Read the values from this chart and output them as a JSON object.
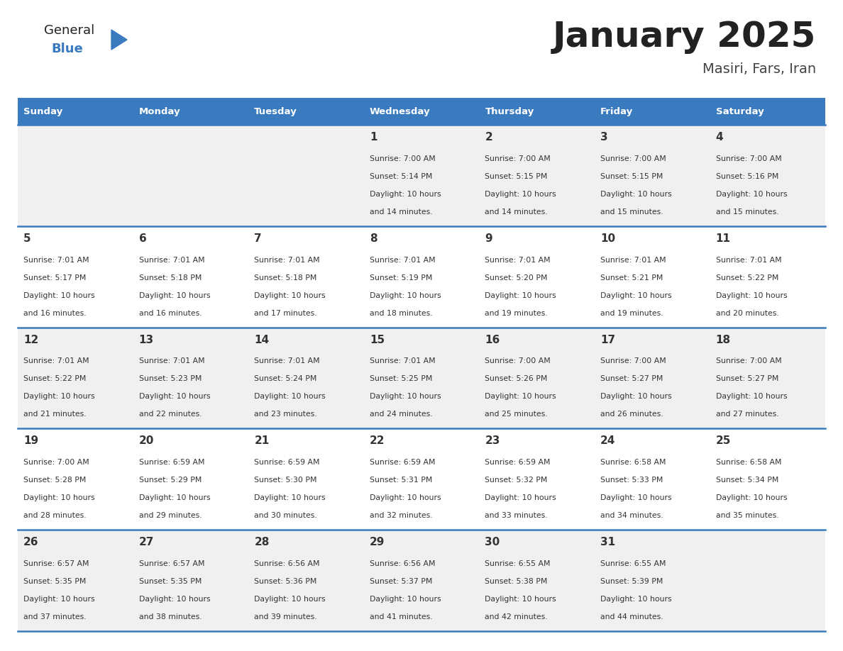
{
  "title": "January 2025",
  "subtitle": "Masiri, Fars, Iran",
  "header_color": "#3a7abf",
  "header_text_color": "#ffffff",
  "day_names": [
    "Sunday",
    "Monday",
    "Tuesday",
    "Wednesday",
    "Thursday",
    "Friday",
    "Saturday"
  ],
  "background_color": "#ffffff",
  "cell_bg_even": "#f0f0f0",
  "cell_bg_odd": "#ffffff",
  "row_line_color": "#3a7abf",
  "title_color": "#222222",
  "subtitle_color": "#444444",
  "day_number_color": "#333333",
  "info_color": "#333333",
  "logo_general_color": "#222222",
  "logo_blue_color": "#3a7abf",
  "logo_triangle_color": "#3a7abf",
  "calendar": [
    [
      {
        "day": "",
        "sunrise": "",
        "sunset": "",
        "daylight_hours": "",
        "daylight_mins": ""
      },
      {
        "day": "",
        "sunrise": "",
        "sunset": "",
        "daylight_hours": "",
        "daylight_mins": ""
      },
      {
        "day": "",
        "sunrise": "",
        "sunset": "",
        "daylight_hours": "",
        "daylight_mins": ""
      },
      {
        "day": "1",
        "sunrise": "7:00 AM",
        "sunset": "5:14 PM",
        "daylight_hours": "10 hours",
        "daylight_mins": "and 14 minutes."
      },
      {
        "day": "2",
        "sunrise": "7:00 AM",
        "sunset": "5:15 PM",
        "daylight_hours": "10 hours",
        "daylight_mins": "and 14 minutes."
      },
      {
        "day": "3",
        "sunrise": "7:00 AM",
        "sunset": "5:15 PM",
        "daylight_hours": "10 hours",
        "daylight_mins": "and 15 minutes."
      },
      {
        "day": "4",
        "sunrise": "7:00 AM",
        "sunset": "5:16 PM",
        "daylight_hours": "10 hours",
        "daylight_mins": "and 15 minutes."
      }
    ],
    [
      {
        "day": "5",
        "sunrise": "7:01 AM",
        "sunset": "5:17 PM",
        "daylight_hours": "10 hours",
        "daylight_mins": "and 16 minutes."
      },
      {
        "day": "6",
        "sunrise": "7:01 AM",
        "sunset": "5:18 PM",
        "daylight_hours": "10 hours",
        "daylight_mins": "and 16 minutes."
      },
      {
        "day": "7",
        "sunrise": "7:01 AM",
        "sunset": "5:18 PM",
        "daylight_hours": "10 hours",
        "daylight_mins": "and 17 minutes."
      },
      {
        "day": "8",
        "sunrise": "7:01 AM",
        "sunset": "5:19 PM",
        "daylight_hours": "10 hours",
        "daylight_mins": "and 18 minutes."
      },
      {
        "day": "9",
        "sunrise": "7:01 AM",
        "sunset": "5:20 PM",
        "daylight_hours": "10 hours",
        "daylight_mins": "and 19 minutes."
      },
      {
        "day": "10",
        "sunrise": "7:01 AM",
        "sunset": "5:21 PM",
        "daylight_hours": "10 hours",
        "daylight_mins": "and 19 minutes."
      },
      {
        "day": "11",
        "sunrise": "7:01 AM",
        "sunset": "5:22 PM",
        "daylight_hours": "10 hours",
        "daylight_mins": "and 20 minutes."
      }
    ],
    [
      {
        "day": "12",
        "sunrise": "7:01 AM",
        "sunset": "5:22 PM",
        "daylight_hours": "10 hours",
        "daylight_mins": "and 21 minutes."
      },
      {
        "day": "13",
        "sunrise": "7:01 AM",
        "sunset": "5:23 PM",
        "daylight_hours": "10 hours",
        "daylight_mins": "and 22 minutes."
      },
      {
        "day": "14",
        "sunrise": "7:01 AM",
        "sunset": "5:24 PM",
        "daylight_hours": "10 hours",
        "daylight_mins": "and 23 minutes."
      },
      {
        "day": "15",
        "sunrise": "7:01 AM",
        "sunset": "5:25 PM",
        "daylight_hours": "10 hours",
        "daylight_mins": "and 24 minutes."
      },
      {
        "day": "16",
        "sunrise": "7:00 AM",
        "sunset": "5:26 PM",
        "daylight_hours": "10 hours",
        "daylight_mins": "and 25 minutes."
      },
      {
        "day": "17",
        "sunrise": "7:00 AM",
        "sunset": "5:27 PM",
        "daylight_hours": "10 hours",
        "daylight_mins": "and 26 minutes."
      },
      {
        "day": "18",
        "sunrise": "7:00 AM",
        "sunset": "5:27 PM",
        "daylight_hours": "10 hours",
        "daylight_mins": "and 27 minutes."
      }
    ],
    [
      {
        "day": "19",
        "sunrise": "7:00 AM",
        "sunset": "5:28 PM",
        "daylight_hours": "10 hours",
        "daylight_mins": "and 28 minutes."
      },
      {
        "day": "20",
        "sunrise": "6:59 AM",
        "sunset": "5:29 PM",
        "daylight_hours": "10 hours",
        "daylight_mins": "and 29 minutes."
      },
      {
        "day": "21",
        "sunrise": "6:59 AM",
        "sunset": "5:30 PM",
        "daylight_hours": "10 hours",
        "daylight_mins": "and 30 minutes."
      },
      {
        "day": "22",
        "sunrise": "6:59 AM",
        "sunset": "5:31 PM",
        "daylight_hours": "10 hours",
        "daylight_mins": "and 32 minutes."
      },
      {
        "day": "23",
        "sunrise": "6:59 AM",
        "sunset": "5:32 PM",
        "daylight_hours": "10 hours",
        "daylight_mins": "and 33 minutes."
      },
      {
        "day": "24",
        "sunrise": "6:58 AM",
        "sunset": "5:33 PM",
        "daylight_hours": "10 hours",
        "daylight_mins": "and 34 minutes."
      },
      {
        "day": "25",
        "sunrise": "6:58 AM",
        "sunset": "5:34 PM",
        "daylight_hours": "10 hours",
        "daylight_mins": "and 35 minutes."
      }
    ],
    [
      {
        "day": "26",
        "sunrise": "6:57 AM",
        "sunset": "5:35 PM",
        "daylight_hours": "10 hours",
        "daylight_mins": "and 37 minutes."
      },
      {
        "day": "27",
        "sunrise": "6:57 AM",
        "sunset": "5:35 PM",
        "daylight_hours": "10 hours",
        "daylight_mins": "and 38 minutes."
      },
      {
        "day": "28",
        "sunrise": "6:56 AM",
        "sunset": "5:36 PM",
        "daylight_hours": "10 hours",
        "daylight_mins": "and 39 minutes."
      },
      {
        "day": "29",
        "sunrise": "6:56 AM",
        "sunset": "5:37 PM",
        "daylight_hours": "10 hours",
        "daylight_mins": "and 41 minutes."
      },
      {
        "day": "30",
        "sunrise": "6:55 AM",
        "sunset": "5:38 PM",
        "daylight_hours": "10 hours",
        "daylight_mins": "and 42 minutes."
      },
      {
        "day": "31",
        "sunrise": "6:55 AM",
        "sunset": "5:39 PM",
        "daylight_hours": "10 hours",
        "daylight_mins": "and 44 minutes."
      },
      {
        "day": "",
        "sunrise": "",
        "sunset": "",
        "daylight_hours": "",
        "daylight_mins": ""
      }
    ]
  ]
}
